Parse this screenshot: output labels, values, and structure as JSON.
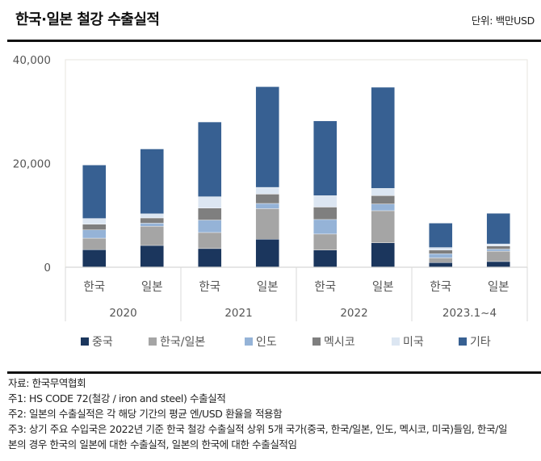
{
  "header": {
    "title": "한국·일본 철강 수출실적",
    "unit": "단위: 백만USD"
  },
  "chart_data": {
    "type": "bar",
    "stacked": true,
    "title": "한국·일본 철강 수출실적",
    "unit": "단위: 백만USD",
    "xlabel": "",
    "ylabel": "",
    "ylim": [
      0,
      40000
    ],
    "yticks": [
      0,
      20000,
      40000
    ],
    "ytick_labels": [
      "0",
      "20,000",
      "40,000"
    ],
    "grid": false,
    "legend_position": "bottom",
    "groups": [
      {
        "label": "2020",
        "categories": [
          "한국",
          "일본"
        ]
      },
      {
        "label": "2021",
        "categories": [
          "한국",
          "일본"
        ]
      },
      {
        "label": "2022",
        "categories": [
          "한국",
          "일본"
        ]
      },
      {
        "label": "2023.1~4",
        "categories": [
          "한국",
          "일본"
        ]
      }
    ],
    "categories": [
      "2020 한국",
      "2020 일본",
      "2021 한국",
      "2021 일본",
      "2022 한국",
      "2022 일본",
      "2023.1~4 한국",
      "2023.1~4 일본"
    ],
    "series": [
      {
        "name": "중국",
        "color": "#1b365d",
        "values": [
          3400,
          4200,
          3600,
          5400,
          3300,
          4700,
          900,
          1100
        ]
      },
      {
        "name": "한국/일본",
        "color": "#a5a5a5",
        "values": [
          2200,
          3700,
          3100,
          5900,
          3100,
          6200,
          900,
          2000
        ]
      },
      {
        "name": "인도",
        "color": "#95b3d7",
        "values": [
          1600,
          600,
          2400,
          1000,
          2800,
          1300,
          800,
          400
        ]
      },
      {
        "name": "멕시코",
        "color": "#7f7f7f",
        "values": [
          1100,
          1000,
          2300,
          1800,
          2400,
          1600,
          700,
          600
        ]
      },
      {
        "name": "미국",
        "color": "#dce6f2",
        "values": [
          1100,
          800,
          2200,
          1300,
          2200,
          1400,
          500,
          400
        ]
      },
      {
        "name": "기타",
        "color": "#376092",
        "values": [
          10300,
          12500,
          14400,
          19400,
          14400,
          19500,
          4700,
          5900
        ]
      }
    ]
  },
  "notes": [
    "자료: 한국무역협회",
    "주1: HS CODE 72(철강 / iron and steel) 수출실적",
    "주2: 일본의 수출실적은 각 해당 기간의 평균 엔/USD 환율을 적용함",
    "주3: 상기 주요 수입국은 2022년 기준 한국 철강 수출실적 상위 5개 국가(중국, 한국/일본, 인도, 멕시코, 미국)들임, 한국/일",
    "본의 경우 한국의 일본에 대한 수출실적, 일본의 한국에 대한 수출실적임"
  ]
}
